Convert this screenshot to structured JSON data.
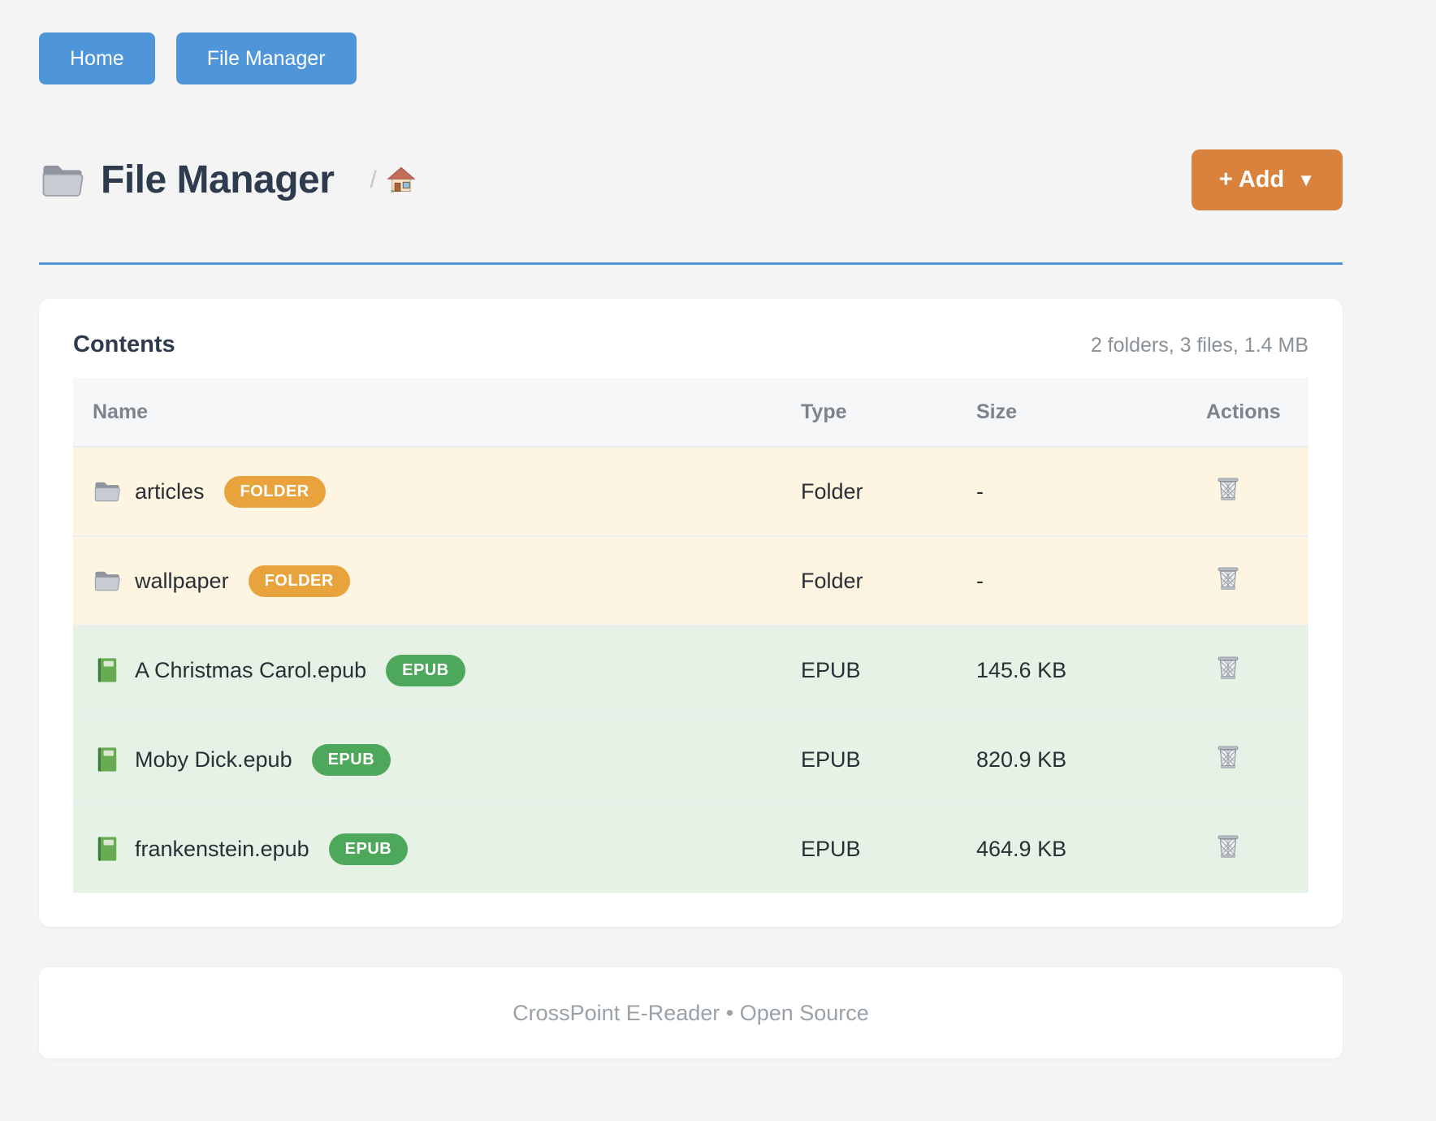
{
  "nav": {
    "buttons": [
      {
        "label": "Home"
      },
      {
        "label": "File Manager"
      }
    ]
  },
  "header": {
    "title": "File Manager",
    "title_icon": "folder-icon",
    "breadcrumb_separator": "/",
    "breadcrumb_home_icon": "house-icon",
    "add_button": {
      "label": "+ Add",
      "caret": "▼"
    }
  },
  "contents": {
    "title": "Contents",
    "summary": "2 folders, 3 files, 1.4 MB",
    "table": {
      "columns": [
        "Name",
        "Type",
        "Size",
        "Actions"
      ],
      "rows": [
        {
          "name": "articles",
          "badge": "FOLDER",
          "type": "Folder",
          "size": "-",
          "kind": "folder",
          "icon": "folder-icon",
          "action_icon": "trash-icon"
        },
        {
          "name": "wallpaper",
          "badge": "FOLDER",
          "type": "Folder",
          "size": "-",
          "kind": "folder",
          "icon": "folder-icon",
          "action_icon": "trash-icon"
        },
        {
          "name": "A Christmas Carol.epub",
          "badge": "EPUB",
          "type": "EPUB",
          "size": "145.6 KB",
          "kind": "epub",
          "icon": "book-icon",
          "action_icon": "trash-icon"
        },
        {
          "name": "Moby Dick.epub",
          "badge": "EPUB",
          "type": "EPUB",
          "size": "820.9 KB",
          "kind": "epub",
          "icon": "book-icon",
          "action_icon": "trash-icon"
        },
        {
          "name": "frankenstein.epub",
          "badge": "EPUB",
          "type": "EPUB",
          "size": "464.9 KB",
          "kind": "epub",
          "icon": "book-icon",
          "action_icon": "trash-icon"
        }
      ]
    }
  },
  "footer": {
    "text": "CrossPoint E-Reader • Open Source"
  },
  "colors": {
    "accent_blue": "#4e95d9",
    "accent_orange": "#d9823d",
    "badge_folder": "#e9a33c",
    "badge_epub": "#4ea85b",
    "row_folder_bg": "#fdf5e2",
    "row_epub_bg": "#e7f2e7"
  }
}
